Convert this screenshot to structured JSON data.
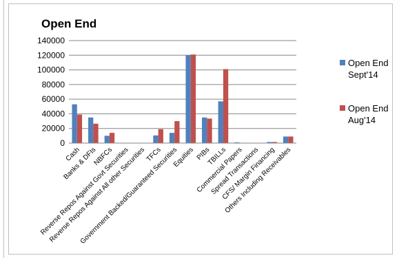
{
  "chart_data": {
    "type": "bar",
    "title": "Open End",
    "xlabel": "",
    "ylabel": "",
    "ylim": [
      0,
      140000
    ],
    "yticks": [
      "0",
      "20000",
      "40000",
      "60000",
      "80000",
      "100000",
      "120000",
      "140000"
    ],
    "grid": true,
    "legend_position": "right",
    "categories": [
      "Cash",
      "Banks & DFIs",
      "NBFCs",
      "Reverse Repos Against Govt Securities",
      "Reverse Repos Against All other Securities",
      "TFCs",
      "Government Backed/Guaranteed Securities",
      "Equities",
      "PIBs",
      "TBILLs",
      "Commercial Papers",
      "Spread Transactions",
      "CFS/ Margin Financing",
      "Others Including Receivables"
    ],
    "series": [
      {
        "name_lines": [
          "Open End",
          "Sept'14"
        ],
        "color": "#4f81bd",
        "values": [
          53000,
          35000,
          10000,
          0,
          0,
          10500,
          14000,
          120000,
          35000,
          57000,
          1000,
          0,
          1500,
          9000
        ]
      },
      {
        "name_lines": [
          "Open End",
          "Aug'14"
        ],
        "color": "#c0504d",
        "values": [
          39000,
          26500,
          14000,
          0,
          0,
          19000,
          30000,
          121000,
          33500,
          101000,
          500,
          0,
          1500,
          9000
        ]
      }
    ]
  }
}
